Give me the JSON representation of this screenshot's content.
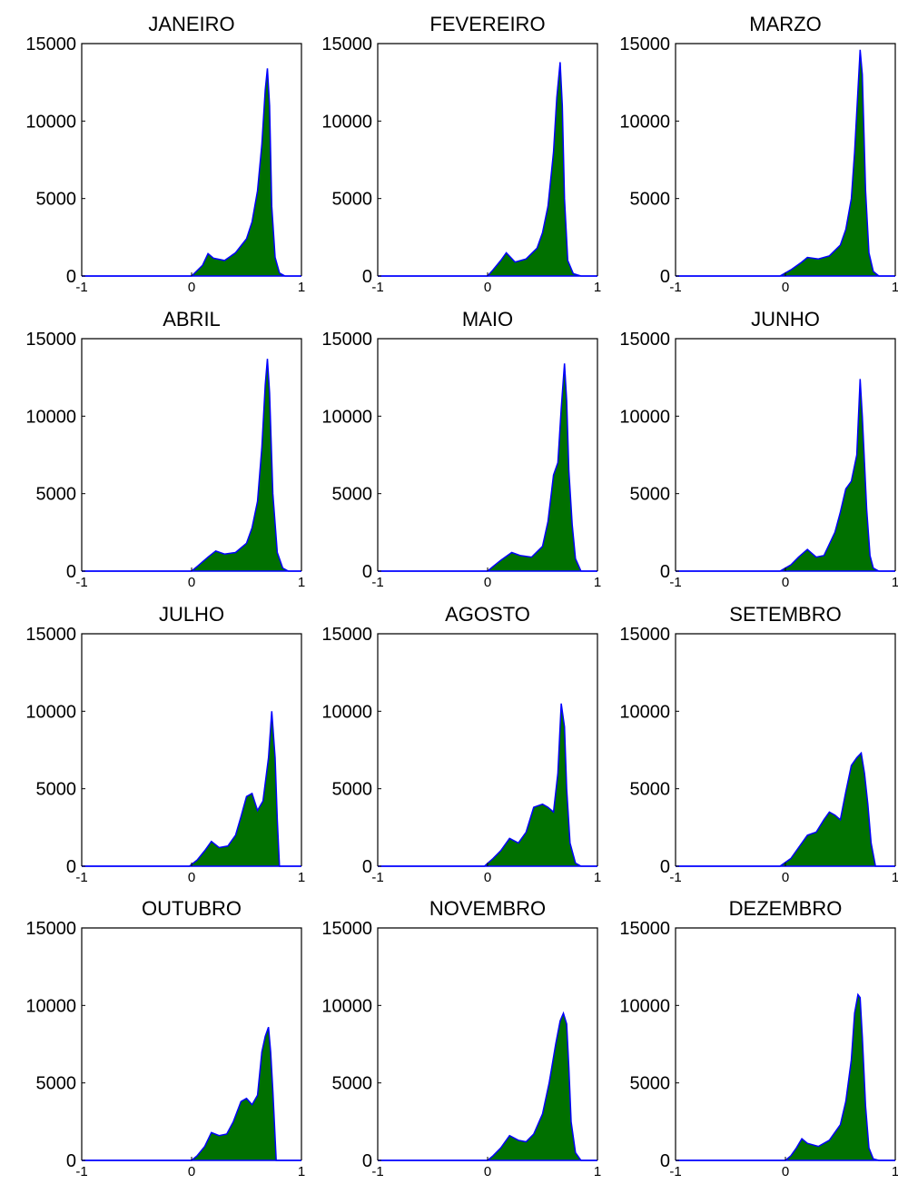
{
  "colors": {
    "fill": "#007000",
    "line": "#0000ff",
    "axes": "#000000"
  },
  "chart_data": [
    {
      "type": "area",
      "title": "JANEIRO",
      "xlim": [
        -1,
        1
      ],
      "ylim": [
        0,
        15000
      ],
      "xticks": [
        "-1",
        "0",
        "1"
      ],
      "yticks": [
        "0",
        "5000",
        "10000",
        "15000"
      ],
      "x": [
        -1,
        0,
        0.1,
        0.15,
        0.2,
        0.3,
        0.4,
        0.5,
        0.55,
        0.6,
        0.64,
        0.67,
        0.69,
        0.71,
        0.73,
        0.76,
        0.8,
        0.85,
        1
      ],
      "y": [
        0,
        0,
        700,
        1450,
        1150,
        1000,
        1500,
        2400,
        3500,
        5500,
        8500,
        12000,
        13400,
        11000,
        4500,
        1200,
        200,
        0,
        0
      ]
    },
    {
      "type": "area",
      "title": "FEVEREIRO",
      "xlim": [
        -1,
        1
      ],
      "ylim": [
        0,
        15000
      ],
      "xticks": [
        "-1",
        "0",
        "1"
      ],
      "yticks": [
        "0",
        "5000",
        "10000",
        "15000"
      ],
      "x": [
        -1,
        0,
        0.05,
        0.12,
        0.17,
        0.25,
        0.35,
        0.45,
        0.5,
        0.55,
        0.6,
        0.63,
        0.66,
        0.68,
        0.7,
        0.73,
        0.78,
        0.85,
        1
      ],
      "y": [
        0,
        0,
        400,
        1000,
        1500,
        900,
        1100,
        1800,
        2800,
        4500,
        8000,
        11500,
        13800,
        11000,
        5000,
        1000,
        150,
        0,
        0
      ]
    },
    {
      "type": "area",
      "title": "MARZO",
      "xlim": [
        -1,
        1
      ],
      "ylim": [
        0,
        15000
      ],
      "xticks": [
        "-1",
        "0",
        "1"
      ],
      "yticks": [
        "0",
        "5000",
        "10000",
        "15000"
      ],
      "x": [
        -1,
        -0.05,
        0.05,
        0.15,
        0.2,
        0.3,
        0.4,
        0.5,
        0.55,
        0.6,
        0.63,
        0.66,
        0.68,
        0.7,
        0.73,
        0.76,
        0.8,
        0.85,
        1
      ],
      "y": [
        0,
        0,
        400,
        900,
        1200,
        1100,
        1300,
        2000,
        3000,
        5000,
        8000,
        12000,
        14600,
        13000,
        5500,
        1500,
        300,
        0,
        0
      ]
    },
    {
      "type": "area",
      "title": "ABRIL",
      "xlim": [
        -1,
        1
      ],
      "ylim": [
        0,
        15000
      ],
      "xticks": [
        "-1",
        "0",
        "1"
      ],
      "yticks": [
        "0",
        "5000",
        "10000",
        "15000"
      ],
      "x": [
        -1,
        0,
        0.05,
        0.15,
        0.22,
        0.3,
        0.4,
        0.5,
        0.55,
        0.6,
        0.64,
        0.67,
        0.69,
        0.71,
        0.74,
        0.78,
        0.83,
        0.88,
        1
      ],
      "y": [
        0,
        0,
        300,
        900,
        1300,
        1100,
        1200,
        1800,
        2800,
        4500,
        8000,
        12000,
        13700,
        11500,
        5000,
        1200,
        200,
        0,
        0
      ]
    },
    {
      "type": "area",
      "title": "MAIO",
      "xlim": [
        -1,
        1
      ],
      "ylim": [
        0,
        15000
      ],
      "xticks": [
        "-1",
        "0",
        "1"
      ],
      "yticks": [
        "0",
        "5000",
        "10000",
        "15000"
      ],
      "x": [
        -1,
        0,
        0.05,
        0.12,
        0.22,
        0.3,
        0.4,
        0.5,
        0.55,
        0.6,
        0.64,
        0.67,
        0.7,
        0.72,
        0.74,
        0.77,
        0.8,
        0.85,
        1
      ],
      "y": [
        0,
        0,
        300,
        700,
        1200,
        1000,
        900,
        1600,
        3200,
        6200,
        7000,
        10500,
        13400,
        11000,
        6500,
        3000,
        800,
        0,
        0
      ]
    },
    {
      "type": "area",
      "title": "JUNHO",
      "xlim": [
        -1,
        1
      ],
      "ylim": [
        0,
        15000
      ],
      "xticks": [
        "-1",
        "0",
        "1"
      ],
      "yticks": [
        "0",
        "5000",
        "10000",
        "15000"
      ],
      "x": [
        -1,
        -0.05,
        0.05,
        0.12,
        0.2,
        0.28,
        0.35,
        0.45,
        0.5,
        0.55,
        0.6,
        0.65,
        0.68,
        0.7,
        0.72,
        0.74,
        0.77,
        0.8,
        0.85,
        1
      ],
      "y": [
        0,
        0,
        400,
        900,
        1400,
        900,
        1000,
        2500,
        3800,
        5300,
        5800,
        7500,
        12400,
        10000,
        7000,
        4000,
        1000,
        200,
        0,
        0
      ]
    },
    {
      "type": "area",
      "title": "JULHO",
      "xlim": [
        -1,
        1
      ],
      "ylim": [
        0,
        15000
      ],
      "xticks": [
        "-1",
        "0",
        "1"
      ],
      "yticks": [
        "0",
        "5000",
        "10000",
        "15000"
      ],
      "x": [
        -1,
        -0.02,
        0.05,
        0.12,
        0.18,
        0.25,
        0.33,
        0.4,
        0.45,
        0.5,
        0.55,
        0.6,
        0.65,
        0.7,
        0.73,
        0.76,
        0.78,
        0.8,
        1
      ],
      "y": [
        0,
        0,
        400,
        1000,
        1600,
        1200,
        1300,
        2000,
        3200,
        4500,
        4700,
        3600,
        4200,
        7000,
        10000,
        7000,
        3000,
        0,
        0
      ]
    },
    {
      "type": "area",
      "title": "AGOSTO",
      "xlim": [
        -1,
        1
      ],
      "ylim": [
        0,
        15000
      ],
      "xticks": [
        "-1",
        "0",
        "1"
      ],
      "yticks": [
        "0",
        "5000",
        "10000",
        "15000"
      ],
      "x": [
        -1,
        -0.03,
        0.05,
        0.12,
        0.2,
        0.28,
        0.35,
        0.42,
        0.5,
        0.55,
        0.6,
        0.64,
        0.67,
        0.7,
        0.72,
        0.75,
        0.8,
        0.85,
        1
      ],
      "y": [
        0,
        0,
        500,
        1000,
        1800,
        1500,
        2200,
        3800,
        4000,
        3800,
        3500,
        6000,
        10500,
        9000,
        5000,
        1500,
        200,
        0,
        0
      ]
    },
    {
      "type": "area",
      "title": "SETEMBRO",
      "xlim": [
        -1,
        1
      ],
      "ylim": [
        0,
        15000
      ],
      "xticks": [
        "-1",
        "0",
        "1"
      ],
      "yticks": [
        "0",
        "5000",
        "10000",
        "15000"
      ],
      "x": [
        -1,
        -0.05,
        0.05,
        0.12,
        0.2,
        0.28,
        0.35,
        0.4,
        0.45,
        0.5,
        0.55,
        0.6,
        0.65,
        0.69,
        0.72,
        0.75,
        0.78,
        0.82,
        1
      ],
      "y": [
        0,
        0,
        500,
        1200,
        2000,
        2200,
        3000,
        3500,
        3300,
        3000,
        4800,
        6500,
        7000,
        7300,
        6000,
        4000,
        1500,
        0,
        0
      ]
    },
    {
      "type": "area",
      "title": "OUTUBRO",
      "xlim": [
        -1,
        1
      ],
      "ylim": [
        0,
        15000
      ],
      "xticks": [
        "-1",
        "0",
        "1"
      ],
      "yticks": [
        "0",
        "5000",
        "10000",
        "15000"
      ],
      "x": [
        -1,
        0,
        0.05,
        0.12,
        0.18,
        0.25,
        0.32,
        0.38,
        0.45,
        0.5,
        0.55,
        0.6,
        0.64,
        0.67,
        0.7,
        0.72,
        0.74,
        0.77,
        1
      ],
      "y": [
        0,
        0,
        300,
        900,
        1800,
        1600,
        1700,
        2500,
        3800,
        4000,
        3600,
        4200,
        7000,
        8000,
        8600,
        7000,
        4500,
        0,
        0
      ]
    },
    {
      "type": "area",
      "title": "NOVEMBRO",
      "xlim": [
        -1,
        1
      ],
      "ylim": [
        0,
        15000
      ],
      "xticks": [
        "-1",
        "0",
        "1"
      ],
      "yticks": [
        "0",
        "5000",
        "10000",
        "15000"
      ],
      "x": [
        -1,
        0,
        0.05,
        0.12,
        0.2,
        0.28,
        0.35,
        0.42,
        0.5,
        0.56,
        0.62,
        0.66,
        0.69,
        0.72,
        0.74,
        0.76,
        0.8,
        0.85,
        1
      ],
      "y": [
        0,
        0,
        300,
        800,
        1600,
        1300,
        1200,
        1700,
        3000,
        5000,
        7500,
        9000,
        9500,
        8800,
        6000,
        2500,
        500,
        0,
        0
      ]
    },
    {
      "type": "area",
      "title": "DEZEMBRO",
      "xlim": [
        -1,
        1
      ],
      "ylim": [
        0,
        15000
      ],
      "xticks": [
        "-1",
        "0",
        "1"
      ],
      "yticks": [
        "0",
        "5000",
        "10000",
        "15000"
      ],
      "x": [
        -1,
        0,
        0.05,
        0.1,
        0.15,
        0.2,
        0.3,
        0.4,
        0.5,
        0.55,
        0.6,
        0.63,
        0.66,
        0.68,
        0.7,
        0.73,
        0.76,
        0.8,
        0.85,
        1
      ],
      "y": [
        0,
        0,
        300,
        800,
        1400,
        1100,
        900,
        1300,
        2300,
        3800,
        6500,
        9500,
        10700,
        10500,
        8000,
        3500,
        800,
        100,
        0,
        0
      ]
    }
  ]
}
